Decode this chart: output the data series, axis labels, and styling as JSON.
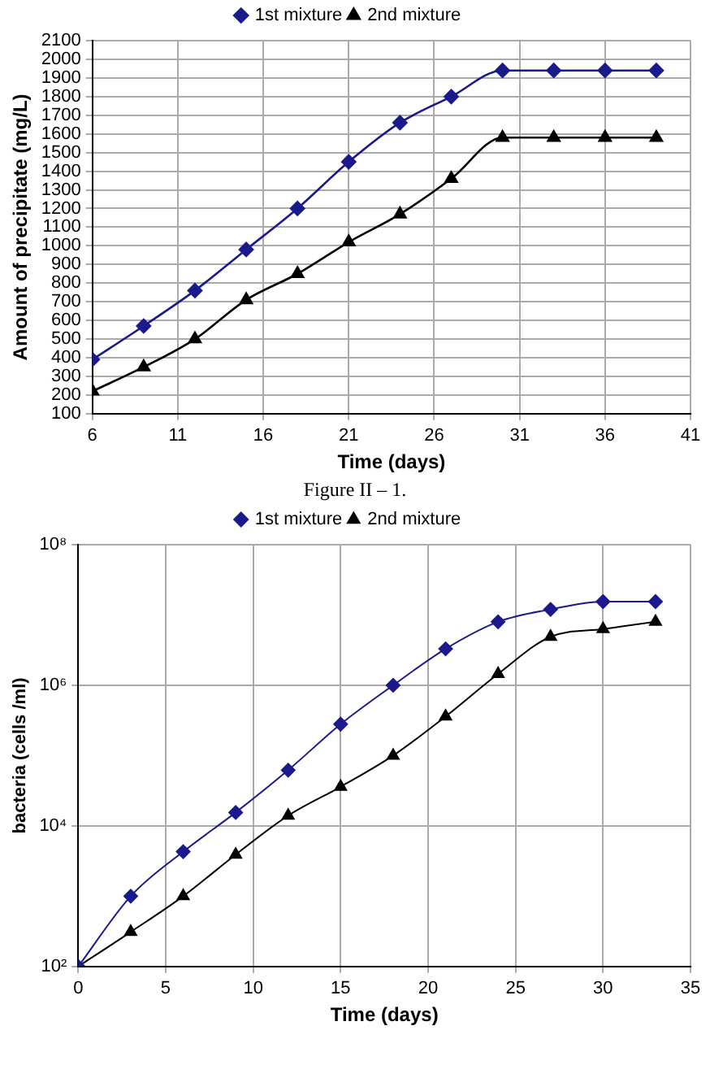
{
  "chart_data": [
    {
      "type": "line",
      "xlabel": "Time (days)",
      "ylabel": "Amount of precipitate (mg/L)",
      "annotations": [
        "Figure II – 1."
      ],
      "legend": "top",
      "grid": true,
      "x": [
        6,
        9,
        12,
        15,
        18,
        21,
        24,
        27,
        30,
        33,
        36,
        39
      ],
      "xlim": [
        6,
        41
      ],
      "xticks": [
        6,
        11,
        16,
        21,
        26,
        31,
        36,
        41
      ],
      "ylim": [
        100,
        2100
      ],
      "yticks": [
        100,
        200,
        300,
        400,
        500,
        600,
        700,
        800,
        900,
        1000,
        1100,
        1200,
        1300,
        1400,
        1500,
        1600,
        1700,
        1800,
        1900,
        2000,
        2100
      ],
      "series": [
        {
          "name": "1st mixture",
          "color": "#1a1a8c",
          "marker": "diamond",
          "values": [
            390,
            570,
            760,
            980,
            1200,
            1450,
            1660,
            1800,
            1940,
            1940,
            1940,
            1940
          ]
        },
        {
          "name": "2nd mixture",
          "color": "#000000",
          "marker": "triangle",
          "values": [
            220,
            350,
            500,
            710,
            850,
            1020,
            1170,
            1360,
            1580,
            1580,
            1580,
            1580
          ]
        }
      ]
    },
    {
      "type": "line",
      "xlabel": "Time (days)",
      "ylabel": "bacteria (cells /ml)",
      "legend": "top",
      "grid": true,
      "log": "y",
      "x": [
        0,
        3,
        6,
        9,
        12,
        15,
        18,
        21,
        24,
        27,
        30,
        33
      ],
      "xlim": [
        0,
        35
      ],
      "xticks": [
        0,
        5,
        10,
        15,
        20,
        25,
        30,
        35
      ],
      "ylim": [
        100,
        100000000
      ],
      "yticks": [
        {
          "value": 100,
          "label": "10²"
        },
        {
          "value": 10000,
          "label": "10⁴"
        },
        {
          "value": 1000000,
          "label": "10⁶"
        },
        {
          "value": 100000000,
          "label": "10⁸"
        }
      ],
      "series": [
        {
          "name": "1st mixture",
          "color": "#1a1a8c",
          "marker": "diamond",
          "values": [
            100,
            1000,
            4300,
            15500,
            62000,
            280000,
            1000000,
            3300000,
            8000000,
            12000000,
            15500000,
            15500000
          ]
        },
        {
          "name": "2nd mixture",
          "color": "#000000",
          "marker": "triangle",
          "values": [
            100,
            310,
            1000,
            3900,
            14000,
            36000,
            100000,
            360000,
            1450000,
            4900000,
            6300000,
            8000000
          ]
        }
      ]
    }
  ]
}
